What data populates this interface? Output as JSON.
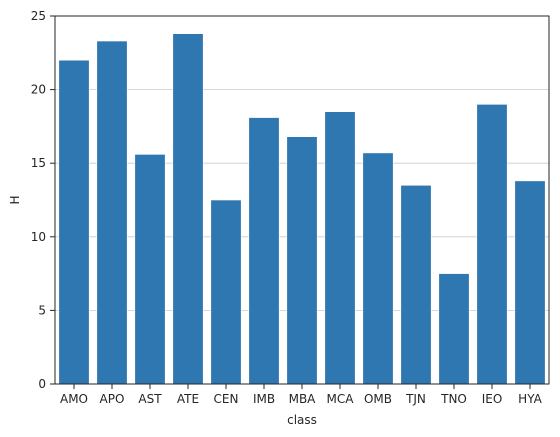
{
  "chart_data": {
    "type": "bar",
    "categories": [
      "AMO",
      "APO",
      "AST",
      "ATE",
      "CEN",
      "IMB",
      "MBA",
      "MCA",
      "OMB",
      "TJN",
      "TNO",
      "IEO",
      "HYA"
    ],
    "values": [
      22.0,
      23.3,
      15.6,
      23.8,
      12.5,
      18.1,
      16.8,
      18.5,
      15.7,
      13.5,
      7.5,
      19.0,
      13.8
    ],
    "title": "",
    "xlabel": "class",
    "ylabel": "H",
    "ylim": [
      0,
      25
    ],
    "yticks": [
      0,
      5,
      10,
      15,
      20,
      25
    ],
    "grid": "horizontal",
    "bar_color": "#2f77b0"
  }
}
